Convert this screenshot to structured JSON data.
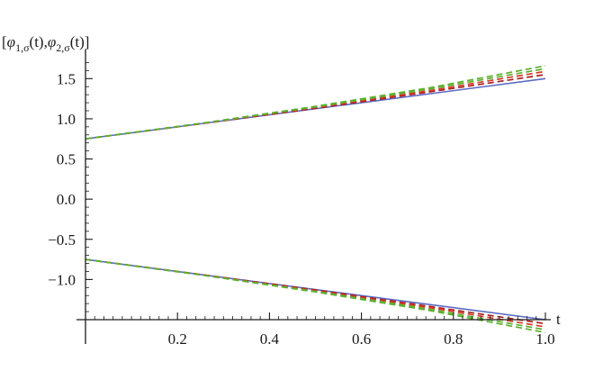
{
  "chart_data": {
    "type": "line",
    "xlabel": "t",
    "ylabel": "[φ1,σ(t),φ2,σ(t)]",
    "ylabel_parts": {
      "open": "[",
      "phi1": "φ",
      "sub1": "1,σ",
      "mid": "(t),",
      "phi2": "φ",
      "sub2": "2,σ",
      "close": "(t)]"
    },
    "xlim": [
      0,
      1.0
    ],
    "ylim": [
      -1.5,
      1.75
    ],
    "x_ticks": [
      {
        "value": 0.2,
        "label": "0.2"
      },
      {
        "value": 0.4,
        "label": "0.4"
      },
      {
        "value": 0.6,
        "label": "0.6"
      },
      {
        "value": 0.8,
        "label": "0.8"
      },
      {
        "value": 1.0,
        "label": "1.0"
      }
    ],
    "y_ticks": [
      {
        "value": 1.5,
        "label": "1.5"
      },
      {
        "value": 1.0,
        "label": "1.0"
      },
      {
        "value": 0.5,
        "label": "0.5"
      },
      {
        "value": 0.0,
        "label": "0.0"
      },
      {
        "value": -0.5,
        "label": "−0.5"
      },
      {
        "value": -1.0,
        "label": "−1.0"
      }
    ],
    "grid": false,
    "legend": "none",
    "colors": {
      "exact": "#5b6bc4",
      "dark_red": "#a82020",
      "red": "#d63a2a",
      "green": "#5cb030",
      "axis": "#1a1a1a"
    },
    "series": [
      {
        "style": "solid",
        "color": "#5b6bc4",
        "x": [
          0,
          1.0
        ],
        "y": [
          0.75,
          1.5
        ]
      },
      {
        "style": "dashed",
        "color": "#a82020",
        "x": [
          0,
          0.25,
          0.5,
          0.75,
          1.0
        ],
        "y": [
          0.75,
          0.937,
          1.13,
          1.336,
          1.55
        ]
      },
      {
        "style": "dashed",
        "color": "#d63a2a",
        "x": [
          0,
          0.25,
          0.5,
          0.75,
          1.0
        ],
        "y": [
          0.75,
          0.939,
          1.14,
          1.352,
          1.59
        ]
      },
      {
        "style": "dashed",
        "color": "#5cb030",
        "x": [
          0,
          0.25,
          0.5,
          0.75,
          1.0
        ],
        "y": [
          0.75,
          0.941,
          1.148,
          1.372,
          1.625
        ]
      },
      {
        "style": "dashed",
        "color": "#5cb030",
        "x": [
          0,
          0.25,
          0.5,
          0.75,
          1.0
        ],
        "y": [
          0.75,
          0.943,
          1.155,
          1.388,
          1.66
        ]
      },
      {
        "style": "solid",
        "color": "#5b6bc4",
        "x": [
          0,
          1.0
        ],
        "y": [
          -0.75,
          -1.5
        ]
      },
      {
        "style": "dashed",
        "color": "#a82020",
        "x": [
          0,
          0.25,
          0.5,
          0.75,
          1.0
        ],
        "y": [
          -0.75,
          -0.937,
          -1.13,
          -1.336,
          -1.55
        ]
      },
      {
        "style": "dashed",
        "color": "#d63a2a",
        "x": [
          0,
          0.25,
          0.5,
          0.75,
          1.0
        ],
        "y": [
          -0.75,
          -0.939,
          -1.14,
          -1.352,
          -1.59
        ]
      },
      {
        "style": "dashed",
        "color": "#5cb030",
        "x": [
          0,
          0.25,
          0.5,
          0.75,
          1.0
        ],
        "y": [
          -0.75,
          -0.941,
          -1.148,
          -1.372,
          -1.625
        ]
      },
      {
        "style": "dashed",
        "color": "#5cb030",
        "x": [
          0,
          0.25,
          0.5,
          0.75,
          1.0
        ],
        "y": [
          -0.75,
          -0.943,
          -1.155,
          -1.388,
          -1.66
        ]
      }
    ]
  }
}
